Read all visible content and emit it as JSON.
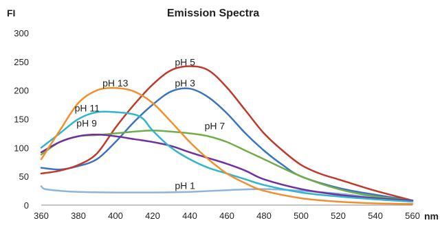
{
  "chart_data": {
    "type": "line",
    "title": "Emission Spectra",
    "ylabel": "FI",
    "xlabel": "nm",
    "xlim": [
      360,
      560
    ],
    "ylim": [
      0,
      300
    ],
    "xticks": [
      "360",
      "380",
      "400",
      "420",
      "440",
      "460",
      "480",
      "500",
      "520",
      "540",
      "560"
    ],
    "yticks": [
      "0",
      "50",
      "100",
      "150",
      "200",
      "250",
      "300"
    ],
    "grid": false,
    "series": [
      {
        "name": "pH 1",
        "color": "#8eb4dc",
        "label": "pH 1",
        "label_at": [
          432,
          28
        ],
        "x": [
          360,
          362,
          370,
          380,
          400,
          420,
          440,
          460,
          480,
          500,
          520,
          540,
          560
        ],
        "y": [
          33,
          28,
          25,
          23,
          22,
          22,
          23,
          26,
          28,
          25,
          20,
          13,
          8
        ]
      },
      {
        "name": "pH 3",
        "color": "#3a73c0",
        "label": "pH 3",
        "label_at": [
          432,
          207
        ],
        "x": [
          360,
          370,
          380,
          390,
          400,
          410,
          420,
          430,
          440,
          450,
          460,
          470,
          480,
          490,
          500,
          520,
          540,
          560
        ],
        "y": [
          65,
          62,
          68,
          80,
          110,
          145,
          175,
          198,
          203,
          188,
          160,
          125,
          95,
          70,
          50,
          30,
          18,
          8
        ]
      },
      {
        "name": "pH 5",
        "color": "#c0392b",
        "label": "pH 5",
        "label_at": [
          432,
          243
        ],
        "x": [
          360,
          370,
          380,
          390,
          400,
          410,
          420,
          430,
          440,
          450,
          460,
          470,
          480,
          490,
          500,
          510,
          520,
          540,
          560
        ],
        "y": [
          55,
          60,
          70,
          90,
          135,
          175,
          210,
          235,
          242,
          235,
          205,
          165,
          125,
          95,
          70,
          55,
          45,
          25,
          8
        ]
      },
      {
        "name": "pH 7",
        "color": "#70ad47",
        "label": "pH 7",
        "label_at": [
          448,
          132
        ],
        "x": [
          360,
          370,
          380,
          390,
          400,
          410,
          420,
          430,
          440,
          450,
          460,
          470,
          480,
          500,
          520,
          540,
          560
        ],
        "y": [
          88,
          110,
          120,
          122,
          125,
          128,
          130,
          128,
          125,
          120,
          110,
          95,
          80,
          50,
          28,
          15,
          8
        ]
      },
      {
        "name": "pH 9",
        "color": "#7030a0",
        "label": "pH 9",
        "label_at": [
          379,
          137
        ],
        "x": [
          360,
          370,
          380,
          390,
          400,
          410,
          420,
          430,
          440,
          450,
          460,
          470,
          480,
          500,
          520,
          540,
          560
        ],
        "y": [
          92,
          110,
          120,
          123,
          120,
          115,
          110,
          103,
          92,
          82,
          72,
          60,
          45,
          28,
          18,
          12,
          8
        ]
      },
      {
        "name": "pH 11",
        "color": "#2fb7c9",
        "label": "pH 11",
        "label_at": [
          378,
          163
        ],
        "x": [
          360,
          370,
          380,
          390,
          400,
          410,
          415,
          420,
          430,
          440,
          450,
          460,
          470,
          480,
          500,
          520,
          540,
          560
        ],
        "y": [
          100,
          125,
          150,
          162,
          162,
          158,
          150,
          130,
          100,
          80,
          65,
          55,
          45,
          35,
          22,
          15,
          10,
          6
        ]
      },
      {
        "name": "pH 13",
        "color": "#f28e2b",
        "label": "pH 13",
        "label_at": [
          393,
          207
        ],
        "x": [
          360,
          370,
          380,
          390,
          400,
          410,
          420,
          430,
          440,
          450,
          460,
          470,
          480,
          500,
          520,
          540,
          560
        ],
        "y": [
          80,
          130,
          178,
          200,
          204,
          198,
          178,
          145,
          110,
          80,
          55,
          38,
          25,
          12,
          6,
          3,
          2
        ]
      }
    ]
  }
}
